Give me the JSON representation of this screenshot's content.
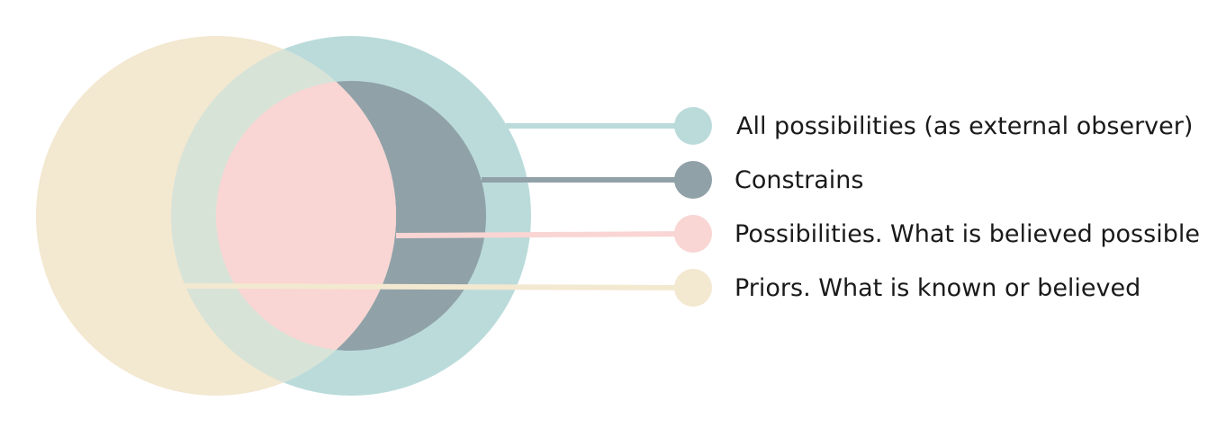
{
  "legend": {
    "items": [
      {
        "id": "all",
        "label": "All possibilities (as external observer)",
        "color": "#bbdbdb"
      },
      {
        "id": "constraints",
        "label": "Constrains",
        "color": "#90a1a8"
      },
      {
        "id": "possibilities",
        "label": "Possibilities. What is believed possible",
        "color": "#f9d5d3"
      },
      {
        "id": "priors",
        "label": "Priors. What is known or believed",
        "color": "#f3e8d0"
      }
    ]
  },
  "colors": {
    "background": "#ffffff",
    "text": "#1a1a1a",
    "priors_overlap": "#d8e3d8"
  }
}
